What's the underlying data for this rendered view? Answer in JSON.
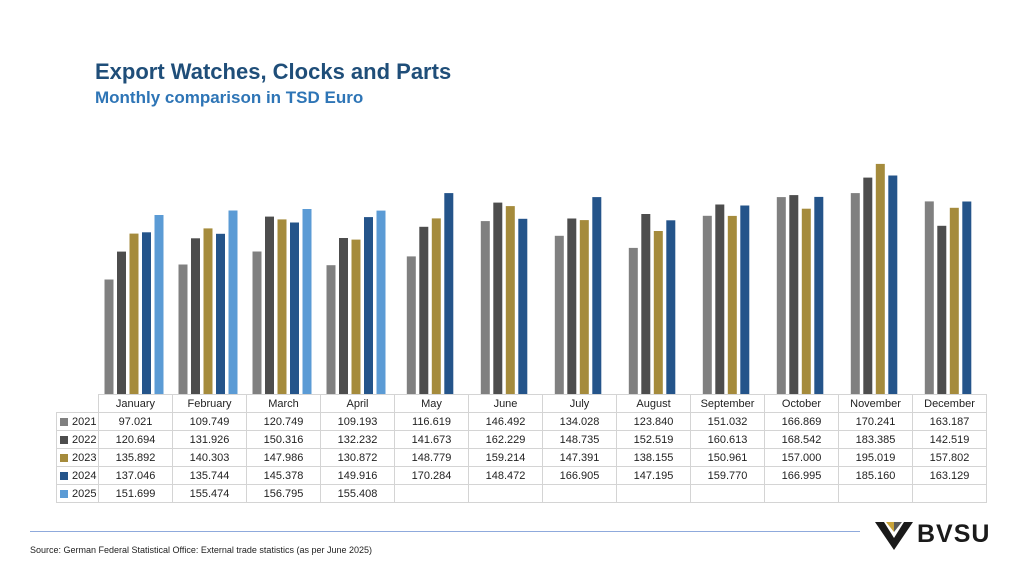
{
  "title": "Export Watches, Clocks and Parts",
  "subtitle": "Monthly comparison in TSD Euro",
  "source": "Source: German Federal Statistical Office: External trade statistics (as per June 2025)",
  "logo": {
    "text": "BVSU"
  },
  "chart_data": {
    "type": "bar",
    "title": "Export Watches, Clocks and Parts",
    "subtitle": "Monthly comparison in TSD Euro",
    "ylim": [
      0,
      200
    ],
    "grid": false,
    "legend": "table-rows",
    "categories": [
      "January",
      "February",
      "March",
      "April",
      "May",
      "June",
      "July",
      "August",
      "September",
      "October",
      "November",
      "December"
    ],
    "series": [
      {
        "name": "2021",
        "color": "#808080",
        "values": [
          97.021,
          109.749,
          120.749,
          109.193,
          116.619,
          146.492,
          134.028,
          123.84,
          151.032,
          166.869,
          170.241,
          163.187
        ],
        "labels": [
          "97.021",
          "109.749",
          "120.749",
          "109.193",
          "116.619",
          "146.492",
          "134.028",
          "123.840",
          "151.032",
          "166.869",
          "170.241",
          "163.187"
        ]
      },
      {
        "name": "2022",
        "color": "#4d4d4d",
        "values": [
          120.694,
          131.926,
          150.316,
          132.232,
          141.673,
          162.229,
          148.735,
          152.519,
          160.613,
          168.542,
          183.385,
          142.519
        ],
        "labels": [
          "120.694",
          "131.926",
          "150.316",
          "132.232",
          "141.673",
          "162.229",
          "148.735",
          "152.519",
          "160.613",
          "168.542",
          "183.385",
          "142.519"
        ]
      },
      {
        "name": "2023",
        "color": "#a58b3c",
        "values": [
          135.892,
          140.303,
          147.986,
          130.872,
          148.779,
          159.214,
          147.391,
          138.155,
          150.961,
          157.0,
          195.019,
          157.802
        ],
        "labels": [
          "135.892",
          "140.303",
          "147.986",
          "130.872",
          "148.779",
          "159.214",
          "147.391",
          "138.155",
          "150.961",
          "157.000",
          "195.019",
          "157.802"
        ]
      },
      {
        "name": "2024",
        "color": "#24548a",
        "values": [
          137.046,
          135.744,
          145.378,
          149.916,
          170.284,
          148.472,
          166.905,
          147.195,
          159.77,
          166.995,
          185.16,
          163.129
        ],
        "labels": [
          "137.046",
          "135.744",
          "145.378",
          "149.916",
          "170.284",
          "148.472",
          "166.905",
          "147.195",
          "159.770",
          "166.995",
          "185.160",
          "163.129"
        ]
      },
      {
        "name": "2025",
        "color": "#5b9bd5",
        "values": [
          151.699,
          155.474,
          156.795,
          155.408,
          null,
          null,
          null,
          null,
          null,
          null,
          null,
          null
        ],
        "labels": [
          "151.699",
          "155.474",
          "156.795",
          "155.408",
          "",
          "",
          "",
          "",
          "",
          "",
          "",
          ""
        ]
      }
    ]
  }
}
